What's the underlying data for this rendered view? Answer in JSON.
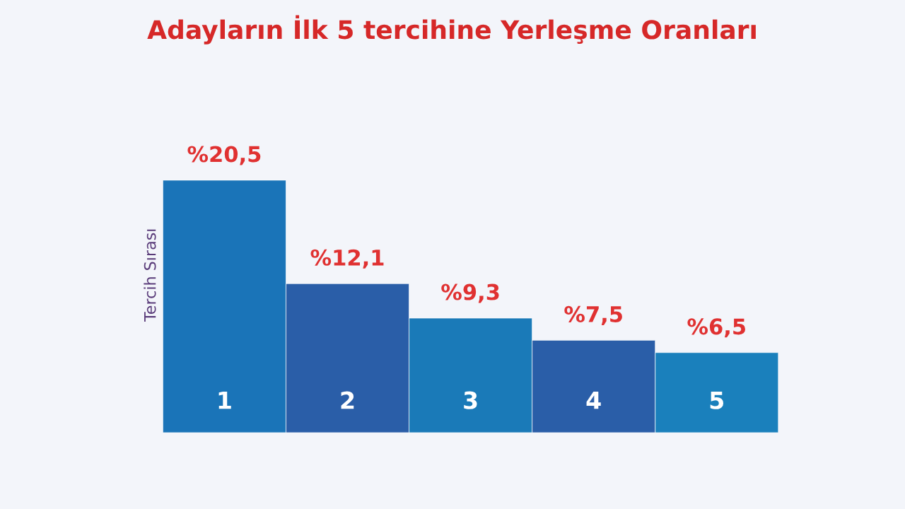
{
  "chart_data": {
    "type": "bar",
    "title": "Adayların İlk 5 tercihine Yerleşme Oranları",
    "ylabel": "Tercih Sırası",
    "categories": [
      "1",
      "2",
      "3",
      "4",
      "5"
    ],
    "values": [
      20.5,
      12.1,
      9.3,
      7.5,
      6.5
    ],
    "value_labels": [
      "%20,5",
      "%12,1",
      "%9,3",
      "%7,5",
      "%6,5"
    ],
    "colors": [
      "#1a74b8",
      "#2a5ea8",
      "#1a7ab8",
      "#2a5ea8",
      "#1a80bc"
    ]
  }
}
